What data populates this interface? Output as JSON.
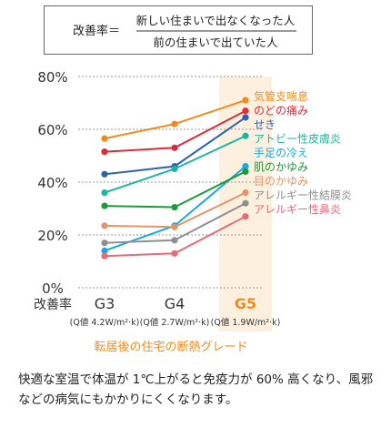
{
  "formula": {
    "label": "改善率＝",
    "numerator": "新しい住まいで出なくなった人",
    "denominator": "前の住まいで出ていた人"
  },
  "chart_data": {
    "type": "line",
    "ylim": [
      0,
      80
    ],
    "yticks": [
      "0%",
      "20%",
      "40%",
      "60%",
      "80%"
    ],
    "grid": "dashed horizontal",
    "x_prefix": "改善率",
    "categories": [
      "G3",
      "G4",
      "G5"
    ],
    "sublabels": [
      "(Q値 4.2W/m²·k)",
      "(Q値 2.7W/m²·k)",
      "(Q値 1.9W/m²·k)"
    ],
    "highlight_category": "G5",
    "xlabel": "転居後の住宅の断熱グレード",
    "colors": {
      "highlight_bg": "#fdf0de",
      "accent": "#f08a1c",
      "grid": "#9a9a9a"
    },
    "series": [
      {
        "name": "気管支喘息",
        "color": "#f08a1c",
        "values": [
          56.5,
          62,
          71
        ]
      },
      {
        "name": "のどの痛み",
        "color": "#e0293a",
        "values": [
          51.5,
          53,
          67
        ]
      },
      {
        "name": "せき",
        "color": "#2f62ad",
        "values": [
          43,
          46,
          64.5
        ]
      },
      {
        "name": "アトビー性皮膚炎",
        "color": "#1fb5a3",
        "values": [
          36,
          45,
          57.5
        ]
      },
      {
        "name": "手足の冷え",
        "color": "#1ba8e0",
        "values": [
          14,
          23.5,
          46
        ]
      },
      {
        "name": "肌のかゆみ",
        "color": "#1f9a3a",
        "values": [
          31,
          30.5,
          44
        ]
      },
      {
        "name": "目のかゆみ",
        "color": "#e3956a",
        "values": [
          23.5,
          23,
          36
        ]
      },
      {
        "name": "アレルギー性結膜炎",
        "color": "#8f8f8f",
        "values": [
          17,
          18,
          32
        ]
      },
      {
        "name": "アレルギー性鼻炎",
        "color": "#e86a78",
        "values": [
          12,
          13,
          27
        ]
      }
    ]
  },
  "caption": "快適な室温で体温が 1℃上がると免疫力が 60% 高くなり、風邪などの病気にもかかりにくくなります。"
}
